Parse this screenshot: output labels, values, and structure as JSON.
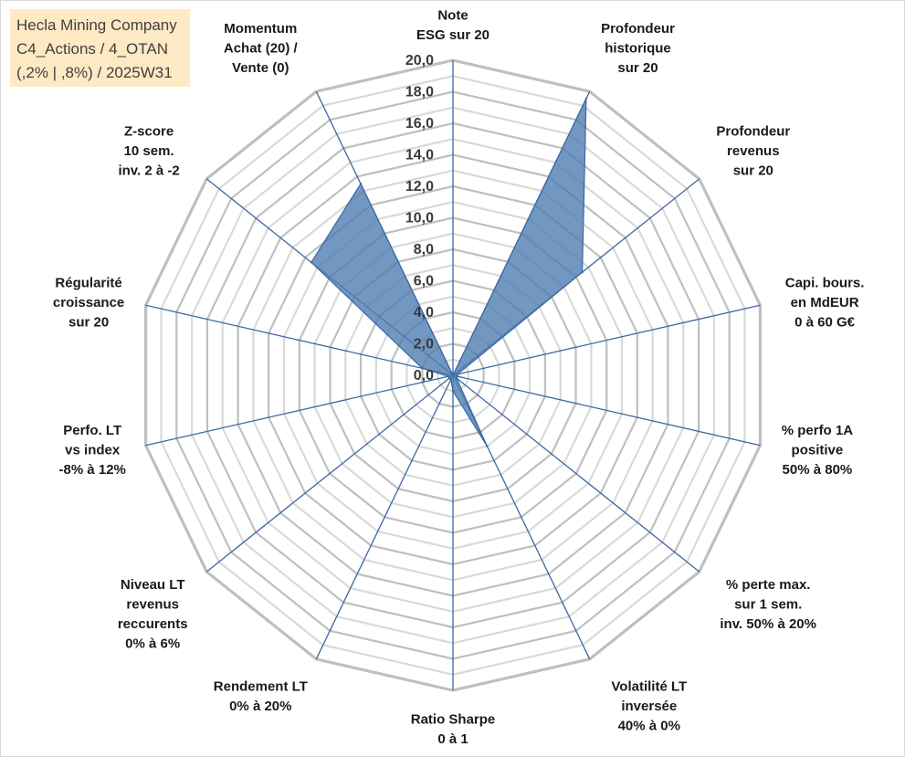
{
  "title": {
    "line1": "Hecla Mining Company",
    "line2": "C4_Actions / 4_OTAN",
    "line3": "(,2% | ,8%) / 2025W31"
  },
  "chart_data": {
    "type": "radar",
    "rmin": 0,
    "rmax": 20,
    "step": 1,
    "tick_labels": [
      "0,0",
      "2,0",
      "4,0",
      "6,0",
      "8,0",
      "10,0",
      "12,0",
      "14,0",
      "16,0",
      "18,0",
      "20,0"
    ],
    "grid": true,
    "colors": {
      "fill": "#4f7db0",
      "stroke": "#3b68a2",
      "spoke": "#3b68a2",
      "grid_major": "#bfbfbf",
      "grid_minor": "#d9d9d9"
    },
    "axes": [
      {
        "lines": [
          "Note",
          "ESG sur 20"
        ],
        "value": 0
      },
      {
        "lines": [
          "Profondeur",
          "historique",
          "sur 20"
        ],
        "value": 19.5
      },
      {
        "lines": [
          "Profondeur",
          "revenus",
          "sur 20"
        ],
        "value": 10.5
      },
      {
        "lines": [
          "Capi. bours.",
          "en MdEUR",
          "0 à 60 G€"
        ],
        "value": 0.3
      },
      {
        "lines": [
          "% perfo 1A",
          "positive",
          "50% à 80%"
        ],
        "value": 0.3
      },
      {
        "lines": [
          "% perte max.",
          "sur 1 sem.",
          "inv. 50% à 20%"
        ],
        "value": 0.3
      },
      {
        "lines": [
          "Volatilité LT",
          "inversée",
          "40% à 0%"
        ],
        "value": 5
      },
      {
        "lines": [
          "Ratio Sharpe",
          "0 à 1"
        ],
        "value": 1
      },
      {
        "lines": [
          "Rendement LT",
          "0% à 20%"
        ],
        "value": 0.3
      },
      {
        "lines": [
          "Niveau LT",
          "revenus",
          "reccurents",
          "0% à 6%"
        ],
        "value": 0.3
      },
      {
        "lines": [
          "Perfo. LT",
          "vs index",
          "-8% à 12%"
        ],
        "value": 0.3
      },
      {
        "lines": [
          "Régularité",
          "croissance",
          "sur 20"
        ],
        "value": 2
      },
      {
        "lines": [
          "Z-score",
          "10 sem.",
          "inv. 2 à -2"
        ],
        "value": 11.5
      },
      {
        "lines": [
          "Momentum",
          "Achat (20) /",
          "Vente (0)"
        ],
        "value": 13.5
      }
    ]
  }
}
